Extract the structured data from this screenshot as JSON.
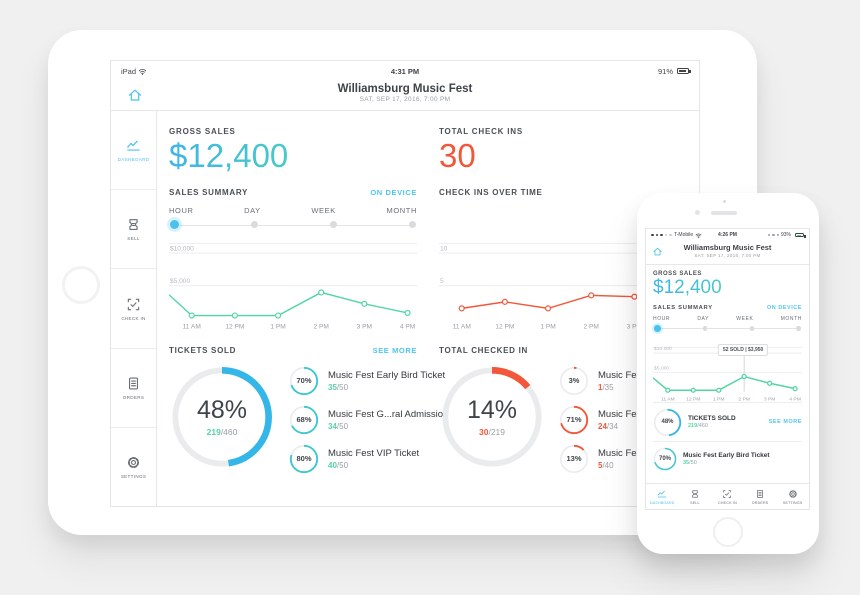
{
  "colors": {
    "accent": "#49c3ee",
    "green": "#53d6a3",
    "orange": "#f2573b",
    "blue_ring": "#34b6e8",
    "teal_ring": "#40c7cf",
    "red_ring": "#f2573b"
  },
  "ipad": {
    "status": {
      "carrier": "iPad",
      "time": "4:31 PM",
      "battery": "91%"
    },
    "header": {
      "title": "Williamsburg Music Fest",
      "subtitle": "SAT, SEP 17, 2016, 7:00 PM"
    },
    "sidebar": {
      "items": [
        {
          "label": "DASHBOARD"
        },
        {
          "label": "SELL"
        },
        {
          "label": "CHECK IN"
        },
        {
          "label": "ORDERS"
        },
        {
          "label": "SETTINGS"
        }
      ]
    },
    "gross_sales": {
      "label": "GROSS SALES",
      "value": "$12,400"
    },
    "total_check_ins": {
      "label": "TOTAL CHECK INS",
      "value": "30"
    },
    "sales_summary": {
      "label": "SALES SUMMARY",
      "link": "ON DEVICE"
    },
    "check_ins_over_time": {
      "label": "CHECK INS OVER TIME"
    },
    "range": {
      "selected": "HOUR",
      "options": [
        {
          "label": "HOUR"
        },
        {
          "label": "DAY"
        },
        {
          "label": "WEEK"
        },
        {
          "label": "MONTH"
        }
      ]
    },
    "tickets_sold": {
      "header": "TICKETS SOLD",
      "link": "SEE MORE",
      "pct": "48%",
      "pct_num": 48,
      "num": "219",
      "denom": "/460",
      "items": [
        {
          "pct": "70%",
          "pct_num": 70,
          "title": "Music Fest Early Bird Ticket",
          "num": "35",
          "denom": "/50"
        },
        {
          "pct": "68%",
          "pct_num": 68,
          "title": "Music Fest G...ral Admission",
          "num": "34",
          "denom": "/50"
        },
        {
          "pct": "80%",
          "pct_num": 80,
          "title": "Music Fest VIP Ticket",
          "num": "40",
          "denom": "/50"
        }
      ]
    },
    "checked_in": {
      "header": "TOTAL CHECKED IN",
      "pct": "14%",
      "pct_num": 14,
      "num": "30",
      "denom": "/219",
      "items": [
        {
          "pct": "3%",
          "pct_num": 3,
          "title": "Music Fest Early Bird Ticket",
          "num": "1",
          "denom": "/35"
        },
        {
          "pct": "71%",
          "pct_num": 71,
          "title": "Music Fest G...ral Admission",
          "num": "24",
          "denom": "/34"
        },
        {
          "pct": "13%",
          "pct_num": 13,
          "title": "Music Fest VIP Ticket",
          "num": "5",
          "denom": "/40"
        }
      ]
    }
  },
  "phone": {
    "status": {
      "carrier": "T-Mobile",
      "time": "4:26 PM",
      "battery": "93%"
    },
    "header": {
      "title": "Williamsburg Music Fest",
      "subtitle": "SAT, SEP 17, 2016, 7:00 PM"
    },
    "gross_sales": {
      "label": "GROSS SALES",
      "value": "$12,400"
    },
    "sales_summary": {
      "label": "SALES SUMMARY",
      "link": "ON DEVICE"
    },
    "range": {
      "selected": "HOUR",
      "options": [
        {
          "label": "HOUR"
        },
        {
          "label": "DAY"
        },
        {
          "label": "WEEK"
        },
        {
          "label": "MONTH"
        }
      ]
    },
    "tooltip": "52 SOLD | $3,950",
    "tickets_sold": {
      "header": "TICKETS SOLD",
      "link": "SEE MORE",
      "pct": "48%",
      "pct_num": 48,
      "num": "219",
      "denom": "/460"
    },
    "item": {
      "pct": "70%",
      "pct_num": 70,
      "title": "Music Fest Early Bird Ticket",
      "num": "35",
      "denom": "/50"
    },
    "tabs": [
      {
        "label": "DASHBOARD"
      },
      {
        "label": "SELL"
      },
      {
        "label": "CHECK IN"
      },
      {
        "label": "ORDERS"
      },
      {
        "label": "SETTINGS"
      }
    ]
  },
  "chart_data": [
    {
      "type": "line",
      "name": "ipad-sales-summary",
      "legend_position": "none",
      "grid": true,
      "x": [
        "11 AM",
        "12 PM",
        "1 PM",
        "2 PM",
        "3 PM",
        "4 PM"
      ],
      "values": [
        400,
        400,
        400,
        3950,
        2200,
        800
      ],
      "edge_start": 3600,
      "ylim": [
        0,
        11500
      ],
      "top_gridline": true,
      "gridlines": [
        {
          "value": 10000,
          "label": "$10,000"
        },
        {
          "value": 5000,
          "label": "$5,000"
        }
      ],
      "color": "#53d6a3"
    },
    {
      "type": "line",
      "name": "ipad-check-ins-over-time",
      "legend_position": "none",
      "grid": true,
      "x": [
        "11 AM",
        "12 PM",
        "1 PM",
        "2 PM",
        "3 PM",
        "4 PM"
      ],
      "values": [
        1.5,
        2.5,
        1.5,
        3.5,
        3.3,
        6.5
      ],
      "ylim": [
        0,
        11.5
      ],
      "top_gridline": true,
      "gridlines": [
        {
          "value": 10,
          "label": "10"
        },
        {
          "value": 5,
          "label": "5"
        }
      ],
      "color": "#f2573b"
    },
    {
      "type": "line",
      "name": "phone-sales-summary",
      "legend_position": "none",
      "grid": true,
      "x": [
        "11 AM",
        "12 PM",
        "1 PM",
        "2 PM",
        "3 PM",
        "4 PM"
      ],
      "values": [
        400,
        400,
        400,
        3950,
        2200,
        800
      ],
      "edge_start": 3600,
      "marker_index": 3,
      "tooltip": "52 SOLD | $3,950",
      "ylim": [
        0,
        11500
      ],
      "top_gridline": true,
      "gridlines": [
        {
          "value": 10000,
          "label": "$10,000"
        },
        {
          "value": 5000,
          "label": "$5,000"
        }
      ],
      "color": "#53d6a3"
    }
  ]
}
